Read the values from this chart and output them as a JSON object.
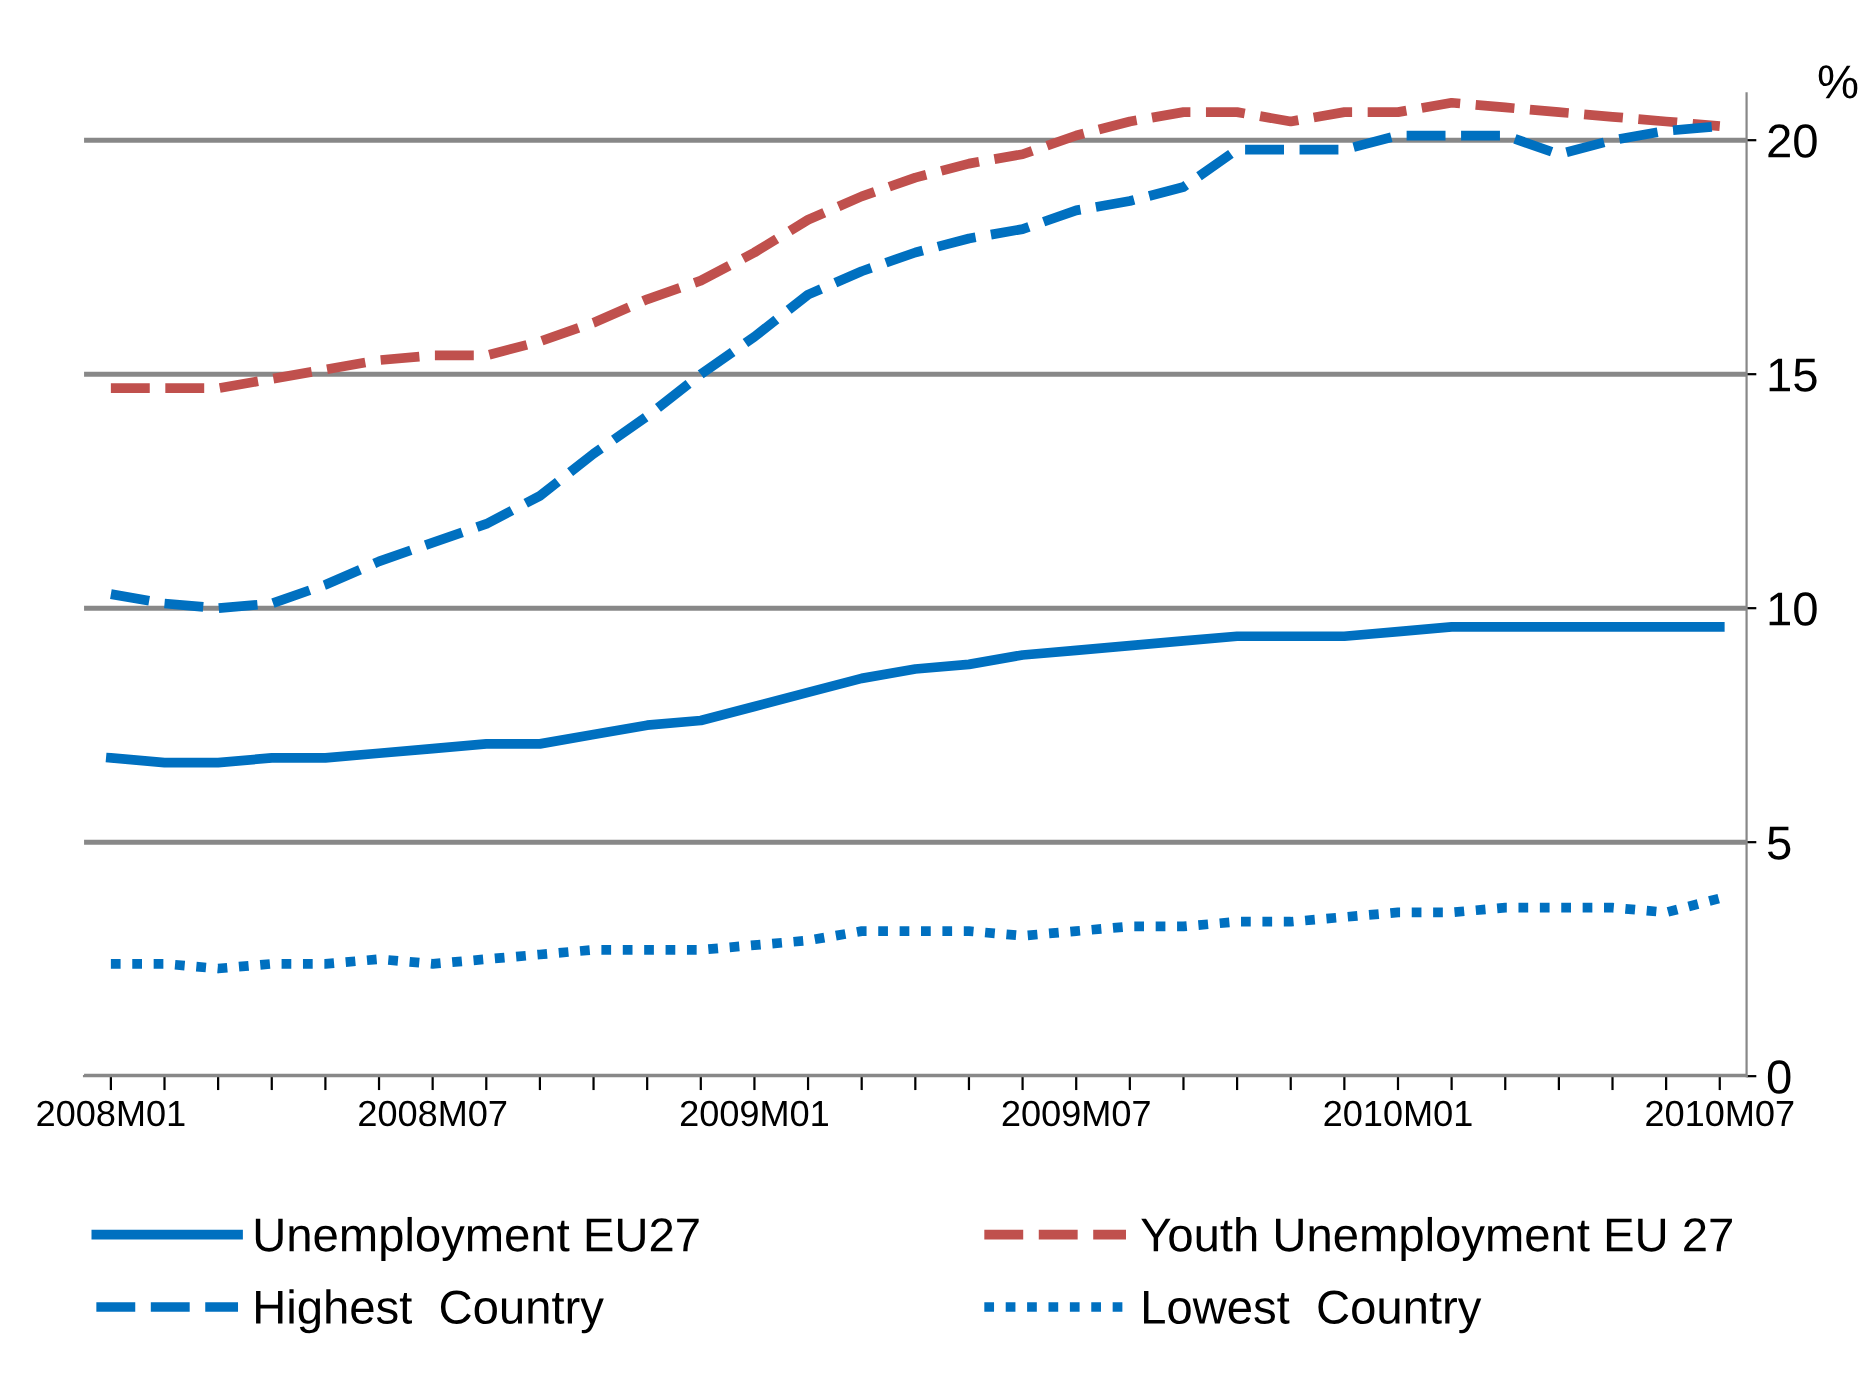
{
  "chart_data": {
    "type": "line",
    "ylabel": "%",
    "categories": [
      "2008M01",
      null,
      null,
      null,
      null,
      null,
      "2008M07",
      null,
      null,
      null,
      null,
      null,
      "2009M01",
      null,
      null,
      null,
      null,
      null,
      "2009M07",
      null,
      null,
      null,
      null,
      null,
      "2010M01",
      null,
      null,
      null,
      null,
      null,
      "2010M07"
    ],
    "series": [
      {
        "name": "Unemployment EU27",
        "color": "#0070c0",
        "line_style": "solid",
        "values": [
          6.8,
          6.7,
          6.7,
          6.8,
          6.8,
          6.9,
          7.0,
          7.1,
          7.1,
          7.3,
          7.5,
          7.6,
          7.9,
          8.2,
          8.5,
          8.7,
          8.8,
          9.0,
          9.1,
          9.2,
          9.3,
          9.4,
          9.4,
          9.4,
          9.5,
          9.6,
          9.6,
          9.6,
          9.6,
          9.6,
          9.6
        ]
      },
      {
        "name": "Youth Unemployment EU 27",
        "color": "#c0504d",
        "line_style": "dashed",
        "values": [
          14.7,
          14.7,
          14.7,
          14.9,
          15.1,
          15.3,
          15.4,
          15.4,
          15.7,
          16.1,
          16.6,
          17.0,
          17.6,
          18.3,
          18.8,
          19.2,
          19.5,
          19.7,
          20.1,
          20.4,
          20.6,
          20.6,
          20.4,
          20.6,
          20.6,
          20.8,
          20.7,
          20.6,
          20.5,
          20.4,
          20.3
        ]
      },
      {
        "name": "Highest  Country",
        "color": "#0070c0",
        "line_style": "dashed",
        "values": [
          10.3,
          10.1,
          10.0,
          10.1,
          10.5,
          11.0,
          11.4,
          11.8,
          12.4,
          13.3,
          14.1,
          15.0,
          15.8,
          16.7,
          17.2,
          17.6,
          17.9,
          18.1,
          18.5,
          18.7,
          19.0,
          19.8,
          19.8,
          19.8,
          20.1,
          20.1,
          20.1,
          19.7,
          20.0,
          20.2,
          20.3
        ]
      },
      {
        "name": "Lowest  Country",
        "color": "#0070c0",
        "line_style": "dotted",
        "values": [
          2.4,
          2.4,
          2.3,
          2.4,
          2.4,
          2.5,
          2.4,
          2.5,
          2.6,
          2.7,
          2.7,
          2.7,
          2.8,
          2.9,
          3.1,
          3.1,
          3.1,
          3.0,
          3.1,
          3.2,
          3.2,
          3.3,
          3.3,
          3.4,
          3.5,
          3.5,
          3.6,
          3.6,
          3.6,
          3.5,
          3.8
        ]
      }
    ],
    "ylim": [
      0,
      21
    ],
    "yticks": [
      0,
      5,
      10,
      15,
      20
    ],
    "grid": "y",
    "legend": "bottom"
  }
}
